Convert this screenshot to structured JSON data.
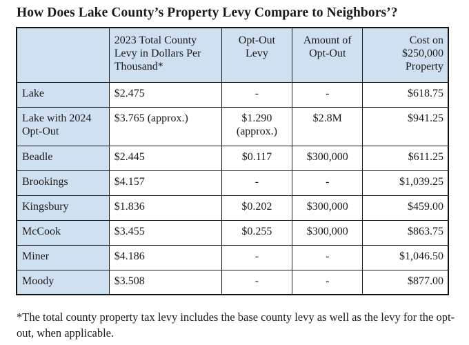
{
  "title": "How Does Lake County’s Property Levy Compare to Neighbors’?",
  "table": {
    "headers": [
      "",
      "2023 Total County Levy in Dollars Per Thousand*",
      "Opt-Out Levy",
      "Amount of Opt-Out",
      "Cost on $250,000 Property"
    ],
    "rows": [
      [
        "Lake",
        "$2.475",
        "-",
        "-",
        "$618.75"
      ],
      [
        "Lake with 2024 Opt-Out",
        "$3.765 (approx.)",
        "$1.290 (approx.)",
        "$2.8M",
        "$941.25"
      ],
      [
        "Beadle",
        "$2.445",
        "$0.117",
        "$300,000",
        "$611.25"
      ],
      [
        "Brookings",
        "$4.157",
        "-",
        "-",
        "$1,039.25"
      ],
      [
        "Kingsbury",
        "$1.836",
        "$0.202",
        "$300,000",
        "$459.00"
      ],
      [
        "McCook",
        "$3.455",
        "$0.255",
        "$300,000",
        "$863.75"
      ],
      [
        "Miner",
        "$4.186",
        "-",
        "-",
        "$1,046.50"
      ],
      [
        "Moody",
        "$3.508",
        "-",
        "-",
        "$877.00"
      ]
    ]
  },
  "footnote": "*The total county property tax levy includes the base county levy as well as the levy for the opt-out, when applicable.",
  "colors": {
    "header_fill": "#cfe0f1",
    "border": "#1a1a1a"
  }
}
